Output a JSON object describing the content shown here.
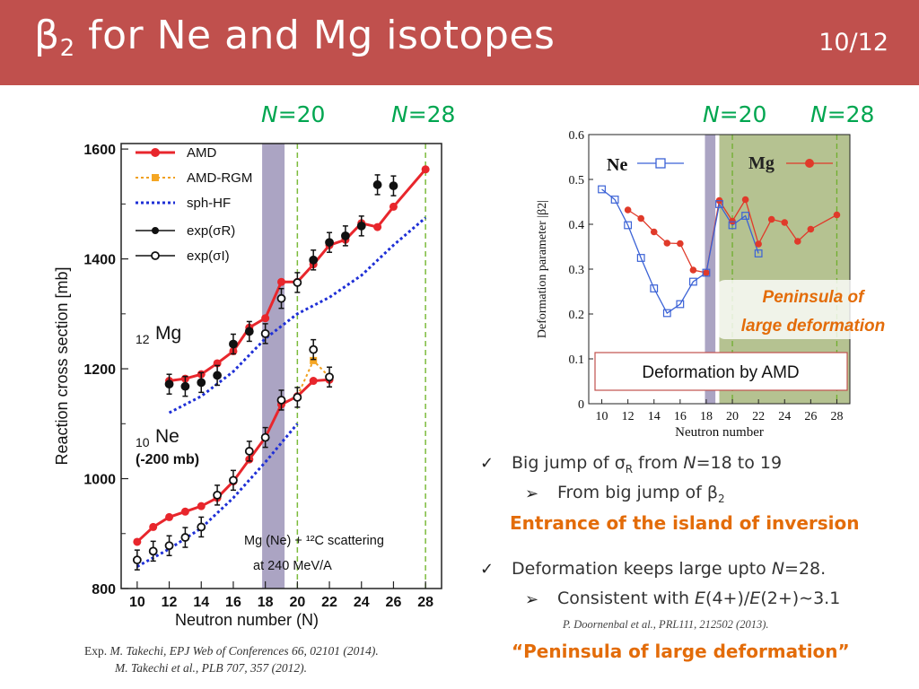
{
  "slide": {
    "title_main": "β",
    "title_sub": "2",
    "title_rest": " for Ne and Mg isotopes",
    "page": "10/12"
  },
  "n_labels": {
    "left_n20": "=20",
    "left_n28": "=28",
    "right_n20": "=20",
    "right_n28": "=28",
    "n": "N"
  },
  "left_chart": {
    "ylabel": "Reaction cross section [mb]",
    "xlabel": "Neutron number (N)",
    "yticks": [
      "800",
      "1000",
      "1200",
      "1400",
      "1600"
    ],
    "xticks": [
      "10",
      "12",
      "14",
      "16",
      "18",
      "20",
      "22",
      "24",
      "26",
      "28"
    ],
    "legend": [
      "AMD",
      "AMD-RGM",
      "sph-HF",
      "exp(σR)",
      "exp(σI)"
    ],
    "mg_label_sub": "12",
    "mg_label": "Mg",
    "ne_label_sub": "10",
    "ne_label": "Ne",
    "ne_note": "(-200 mb)",
    "note1": "Mg (Ne) + ¹²C scattering",
    "note2": "at 240 MeV/A"
  },
  "right_chart": {
    "ylabel": "Deformation parameter |β2|",
    "xlabel": "Neutron number",
    "yticks": [
      "0",
      "0.1",
      "0.2",
      "0.3",
      "0.4",
      "0.5",
      "0.6"
    ],
    "xticks": [
      "10",
      "12",
      "14",
      "16",
      "18",
      "20",
      "22",
      "24",
      "26",
      "28"
    ],
    "ne_legend": "Ne",
    "mg_legend": "Mg",
    "peninsula_line1": "Peninsula of",
    "peninsula_line2": "large deformation",
    "box_label": "Deformation by AMD"
  },
  "bullets": {
    "b1": "Big jump of σR from N=18 to 19",
    "b1a": "From big jump of β2",
    "b1_orange": "Entrance of the island of inversion",
    "b2": "Deformation keeps large upto N=28.",
    "b2a": "Consistent with E(4+)/E(2+)∼3.1",
    "b2_ref": "P. Doornenbal et al., PRL111, 212502 (2013).",
    "b2_orange": "“Peninsula of large deformation”"
  },
  "exp_ref": {
    "prefix": "Exp.",
    "line1": "M. Takechi, EPJ Web of Conferences 66, 02101 (2014).",
    "line2": "M. Takechi et al., PLB 707, 357 (2012)."
  },
  "chart_data": [
    {
      "type": "line",
      "title": "",
      "xlabel": "Neutron number (N)",
      "ylabel": "Reaction cross section [mb]",
      "xlim": [
        9,
        29
      ],
      "ylim": [
        800,
        1610
      ],
      "series": [
        {
          "name": "AMD",
          "x": [
            12,
            13,
            14,
            15,
            16,
            17,
            18,
            19,
            20,
            21,
            22,
            23,
            24,
            25,
            26,
            28
          ],
          "values": [
            1178,
            1182,
            1190,
            1210,
            1232,
            1275,
            1292,
            1358,
            1358,
            1390,
            1425,
            1435,
            1465,
            1458,
            1495,
            1563
          ]
        },
        {
          "name": "sph-HF",
          "x": [
            12,
            14,
            16,
            18,
            20,
            22,
            24,
            26,
            28
          ],
          "values": [
            1120,
            1150,
            1195,
            1255,
            1300,
            1330,
            1370,
            1425,
            1475
          ]
        },
        {
          "name": "exp(σR)",
          "x": [
            12,
            13,
            14,
            15,
            16,
            17,
            21,
            22,
            23,
            24,
            25,
            26
          ],
          "values": [
            1172,
            1168,
            1175,
            1188,
            1245,
            1268,
            1398,
            1430,
            1442,
            1460,
            1535,
            1533
          ]
        },
        {
          "name": "exp(σI)",
          "x": [
            18,
            19,
            20
          ],
          "values": [
            1264,
            1328,
            1357
          ]
        },
        {
          "name": "AMD (Ne)",
          "x": [
            10,
            11,
            12,
            13,
            14,
            15,
            16,
            17,
            18,
            19,
            20,
            21,
            22
          ],
          "values": [
            885,
            912,
            930,
            940,
            950,
            965,
            995,
            1035,
            1075,
            1135,
            1150,
            1178,
            1180
          ]
        },
        {
          "name": "sph-HF (Ne)",
          "x": [
            10,
            12,
            14,
            16,
            18,
            20
          ],
          "values": [
            840,
            872,
            910,
            965,
            1030,
            1100
          ]
        },
        {
          "name": "exp(σI) (Ne)",
          "x": [
            10,
            11,
            12,
            13,
            14,
            15,
            16,
            17,
            18,
            19,
            20,
            21,
            22
          ],
          "values": [
            852,
            868,
            878,
            893,
            912,
            970,
            997,
            1050,
            1075,
            1143,
            1148,
            1235,
            1185
          ]
        },
        {
          "name": "AMD-RGM (Ne)",
          "x": [
            20,
            21,
            22
          ],
          "values": [
            1150,
            1215,
            1185
          ]
        }
      ]
    },
    {
      "type": "line",
      "title": "",
      "xlabel": "Neutron number",
      "ylabel": "Deformation parameter |β2|",
      "xlim": [
        9,
        29
      ],
      "ylim": [
        0,
        0.6
      ],
      "series": [
        {
          "name": "Ne",
          "x": [
            10,
            11,
            12,
            13,
            14,
            15,
            16,
            17,
            18,
            19,
            20,
            21,
            22
          ],
          "values": [
            0.478,
            0.455,
            0.398,
            0.325,
            0.257,
            0.202,
            0.222,
            0.272,
            0.292,
            0.445,
            0.398,
            0.419,
            0.335
          ]
        },
        {
          "name": "Mg",
          "x": [
            12,
            13,
            14,
            15,
            16,
            17,
            18,
            19,
            20,
            21,
            22,
            23,
            24,
            25,
            26,
            28
          ],
          "values": [
            0.432,
            0.413,
            0.383,
            0.358,
            0.357,
            0.298,
            0.292,
            0.453,
            0.407,
            0.455,
            0.356,
            0.411,
            0.404,
            0.362,
            0.389,
            0.421
          ]
        }
      ]
    }
  ]
}
